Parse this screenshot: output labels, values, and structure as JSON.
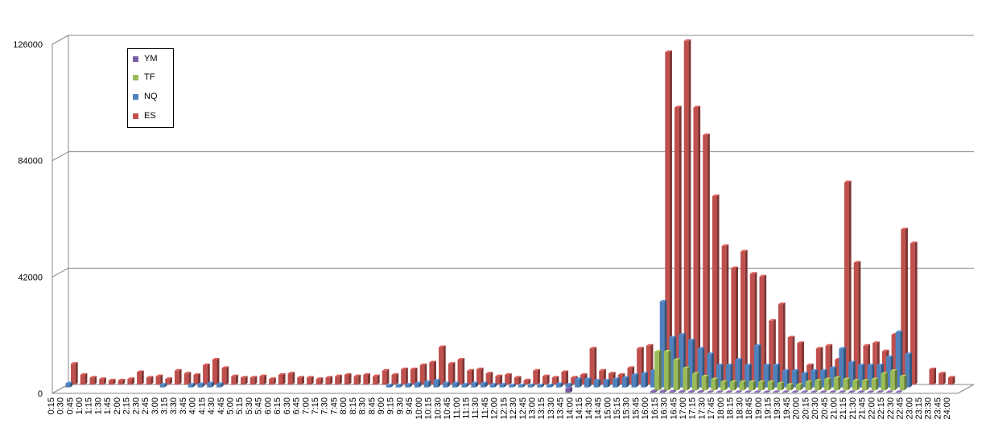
{
  "chart_data": {
    "type": "bar",
    "ylim": [
      0,
      126000
    ],
    "yticks": [
      "0",
      "42000",
      "84000",
      "126000"
    ],
    "grid": true,
    "legend_position": "top-left",
    "categories": [
      "0:15",
      "0:30",
      "0:45",
      "1:00",
      "1:15",
      "1:30",
      "1:45",
      "2:00",
      "2:15",
      "2:30",
      "2:45",
      "3:00",
      "3:15",
      "3:30",
      "3:45",
      "4:00",
      "4:15",
      "4:30",
      "4:45",
      "5:00",
      "5:15",
      "5:30",
      "5:45",
      "6:00",
      "6:15",
      "6:30",
      "6:45",
      "7:00",
      "7:15",
      "7:30",
      "7:45",
      "8:00",
      "8:15",
      "8:30",
      "8:45",
      "9:00",
      "9:15",
      "9:30",
      "9:45",
      "10:00",
      "10:15",
      "10:30",
      "10:45",
      "11:00",
      "11:15",
      "11:30",
      "11:45",
      "12:00",
      "12:15",
      "12:30",
      "12:45",
      "13:00",
      "13:15",
      "13:30",
      "13:45",
      "14:00",
      "14:15",
      "14:30",
      "14:45",
      "15:00",
      "15:15",
      "15:30",
      "15:45",
      "16:00",
      "16:15",
      "16:30",
      "16:45",
      "17:00",
      "17:15",
      "17:30",
      "17:45",
      "18:00",
      "18:15",
      "18:30",
      "18:45",
      "19:00",
      "19:15",
      "19:30",
      "19:45",
      "20:00",
      "20:15",
      "20:30",
      "20:45",
      "21:00",
      "21:15",
      "21:30",
      "21:45",
      "22:00",
      "22:15",
      "22:30",
      "22:45",
      "23:00",
      "23:15",
      "23:30",
      "23:45",
      "24:00"
    ],
    "series": [
      {
        "name": "YM",
        "color": "#7a5ea6",
        "values": [
          0,
          0,
          0,
          0,
          0,
          0,
          0,
          0,
          0,
          0,
          0,
          0,
          0,
          0,
          0,
          0,
          0,
          0,
          0,
          0,
          0,
          0,
          0,
          0,
          0,
          0,
          0,
          0,
          0,
          0,
          0,
          0,
          0,
          0,
          0,
          0,
          0,
          0,
          0,
          0,
          0,
          0,
          0,
          0,
          0,
          0,
          0,
          0,
          0,
          0,
          0,
          0,
          0,
          0,
          1500,
          0,
          0,
          0,
          0,
          0,
          0,
          0,
          0,
          500,
          500,
          400,
          300,
          300,
          300,
          200,
          200,
          200,
          200,
          200,
          200,
          200,
          200,
          200,
          200,
          200,
          200,
          200,
          200,
          200,
          200,
          200,
          200,
          200,
          200,
          200,
          0,
          0,
          0,
          0,
          0,
          0
        ]
      },
      {
        "name": "TF",
        "color": "#9bbb59",
        "values": [
          0,
          0,
          0,
          0,
          0,
          0,
          0,
          0,
          0,
          0,
          0,
          0,
          0,
          0,
          0,
          0,
          0,
          0,
          0,
          0,
          0,
          0,
          0,
          0,
          0,
          0,
          0,
          0,
          0,
          0,
          0,
          0,
          0,
          0,
          0,
          0,
          0,
          0,
          0,
          0,
          0,
          0,
          0,
          0,
          0,
          0,
          0,
          0,
          0,
          0,
          0,
          0,
          0,
          0,
          0,
          0,
          0,
          0,
          0,
          0,
          0,
          0,
          0,
          14000,
          14000,
          11000,
          8000,
          6000,
          5000,
          4000,
          3000,
          3000,
          3000,
          3000,
          3000,
          3000,
          2500,
          2000,
          2000,
          3000,
          3500,
          4000,
          4500,
          4000,
          3500,
          3500,
          4000,
          6000,
          7000,
          5000,
          0,
          0,
          0,
          0,
          0,
          0
        ]
      },
      {
        "name": "NQ",
        "color": "#4f81bd",
        "values": [
          1500,
          0,
          0,
          0,
          0,
          0,
          0,
          0,
          0,
          0,
          1000,
          0,
          0,
          1000,
          1200,
          1500,
          1200,
          0,
          0,
          0,
          0,
          0,
          0,
          0,
          0,
          0,
          0,
          0,
          0,
          0,
          0,
          0,
          0,
          0,
          800,
          800,
          1000,
          1500,
          2000,
          2500,
          1500,
          1500,
          1000,
          1500,
          1500,
          1000,
          1000,
          800,
          800,
          800,
          800,
          800,
          1200,
          1000,
          3000,
          3000,
          2500,
          2500,
          3000,
          3500,
          4500,
          5000,
          6000,
          31000,
          18000,
          19000,
          17000,
          14000,
          12000,
          8000,
          8000,
          10000,
          8000,
          15000,
          8000,
          8000,
          6000,
          6000,
          5000,
          6000,
          6000,
          7000,
          14000,
          9000,
          8000,
          8000,
          8000,
          11000,
          20000,
          12000,
          0,
          0,
          0,
          0,
          0,
          0
        ]
      },
      {
        "name": "ES",
        "color": "#c0504d",
        "values": [
          7500,
          3500,
          2500,
          2000,
          1500,
          1500,
          2000,
          4500,
          2500,
          3000,
          2000,
          5000,
          4000,
          3500,
          7000,
          9000,
          6000,
          3000,
          2500,
          2500,
          3000,
          2000,
          3500,
          4000,
          2500,
          2500,
          2000,
          2500,
          3000,
          3500,
          3000,
          3500,
          3000,
          5000,
          3500,
          5500,
          5500,
          7000,
          8000,
          13500,
          7500,
          9000,
          5000,
          5500,
          4000,
          3000,
          3500,
          2500,
          1500,
          5000,
          3000,
          2500,
          4500,
          2500,
          3500,
          13000,
          5000,
          4000,
          3500,
          6000,
          13000,
          14000,
          3000,
          120000,
          100000,
          124000,
          100000,
          90000,
          68000,
          50000,
          42000,
          48000,
          40000,
          39000,
          23000,
          29000,
          17000,
          15000,
          7000,
          13000,
          14000,
          9000,
          73000,
          44000,
          14000,
          15000,
          12000,
          18000,
          56000,
          51000,
          0,
          5500,
          4000,
          2500,
          0,
          0
        ]
      }
    ]
  },
  "legend": {
    "items": [
      {
        "label": "YM",
        "color": "#7a5ea6"
      },
      {
        "label": "TF",
        "color": "#9bbb59"
      },
      {
        "label": "NQ",
        "color": "#4f81bd"
      },
      {
        "label": "ES",
        "color": "#c0504d"
      }
    ]
  }
}
